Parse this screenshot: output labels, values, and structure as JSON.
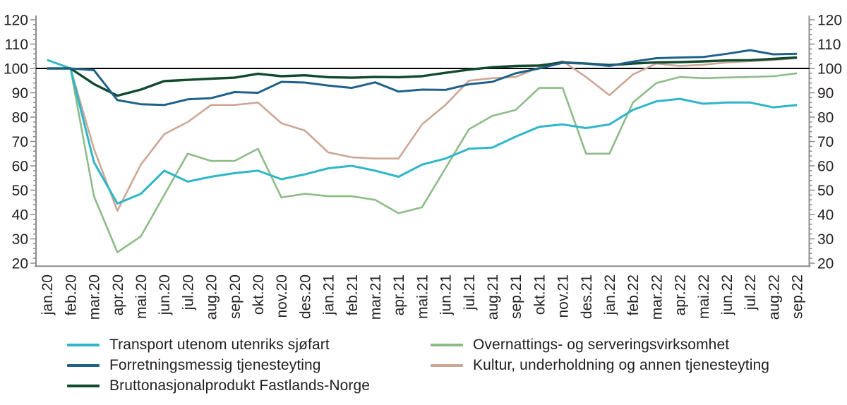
{
  "chart_data": {
    "type": "line",
    "title": "",
    "xlabel": "",
    "ylabel": "",
    "ylim": [
      20,
      120
    ],
    "y_major_step": 10,
    "y_minor_step": 2,
    "grid": false,
    "legend_position": "bottom",
    "dual_y_axis": true,
    "baseline": {
      "value": 100,
      "color": "#000000"
    },
    "axis_color": "#8c8c8c",
    "text_color": "#231f20",
    "y_tick_labels": [
      "20",
      "30",
      "40",
      "50",
      "60",
      "70",
      "80",
      "90",
      "100",
      "110",
      "120"
    ],
    "categories": [
      "jan.20",
      "feb.20",
      "mar.20",
      "apr.20",
      "mai.20",
      "jun.20",
      "jul.20",
      "aug.20",
      "sep.20",
      "okt.20",
      "nov.20",
      "des.20",
      "jan.21",
      "feb.21",
      "mar.21",
      "apr.21",
      "mai.21",
      "jun.21",
      "jul.21",
      "aug.21",
      "sep.21",
      "okt.21",
      "nov.21",
      "des.21",
      "jan.22",
      "feb.22",
      "mar.22",
      "apr.22",
      "mai.22",
      "jun.22",
      "jul.22",
      "aug.22",
      "sep.22"
    ],
    "series": [
      {
        "name": "Transport utenom utenriks sjøfart",
        "color": "#2eb6c9",
        "values": [
          103.5,
          100,
          61.5,
          44.5,
          48.5,
          58,
          53.5,
          55.5,
          57,
          58,
          54.5,
          56.5,
          59,
          60,
          58,
          55.5,
          60.5,
          63,
          67,
          67.5,
          72,
          76,
          77,
          75.5,
          77,
          83,
          86.5,
          87.5,
          85.5,
          86,
          86,
          84,
          85
        ]
      },
      {
        "name": "Forretningsmessig tjenesteyting",
        "color": "#1e6189",
        "values": [
          100,
          100,
          99.3,
          87,
          85.3,
          85,
          87.3,
          87.8,
          90.3,
          90,
          94.5,
          94.2,
          93,
          92,
          94.3,
          90.5,
          91.3,
          91.2,
          93.5,
          94.5,
          98,
          100,
          102.3,
          102,
          101,
          102.8,
          104.2,
          104.5,
          104.7,
          106,
          107.5,
          105.8,
          106
        ]
      },
      {
        "name": "Bruttonasjonalprodukt Fastlands-Norge",
        "color": "#114a2e",
        "values": [
          100,
          100,
          93.6,
          88.8,
          91.3,
          94.8,
          95.3,
          95.8,
          96.2,
          97.8,
          96.8,
          97.2,
          96.4,
          96.2,
          96.5,
          96.4,
          96.8,
          98.2,
          99.5,
          100.5,
          101,
          101.2,
          102.5,
          102,
          101.4,
          102,
          102.5,
          102.6,
          102.9,
          103.3,
          103.4,
          103.9,
          104.5
        ]
      },
      {
        "name": "Overnattings- og serveringsvirksomhet",
        "color": "#8dbc87",
        "values": [
          100,
          100,
          47.5,
          24.5,
          31,
          48,
          65,
          62,
          62,
          67,
          47,
          48.5,
          47.5,
          47.5,
          46,
          40.5,
          43,
          59,
          75,
          80.5,
          83,
          92,
          92,
          65,
          65,
          86,
          94,
          96.5,
          96,
          96.3,
          96.5,
          96.8,
          98
        ]
      },
      {
        "name": "Kultur, underholdning og annen tjenesteyting",
        "color": "#cda796",
        "values": [
          100,
          100,
          67,
          41.5,
          60.5,
          73,
          78,
          85,
          85,
          86,
          77.5,
          74.5,
          65.5,
          63.5,
          63,
          63,
          77,
          85,
          95,
          96,
          96.5,
          100.5,
          103,
          96.5,
          89,
          97.5,
          102,
          101,
          101.5,
          102.5,
          103,
          103.5,
          104.2
        ]
      }
    ]
  },
  "legend": {
    "columns": [
      [
        0,
        1,
        2
      ],
      [
        3,
        4
      ]
    ]
  }
}
